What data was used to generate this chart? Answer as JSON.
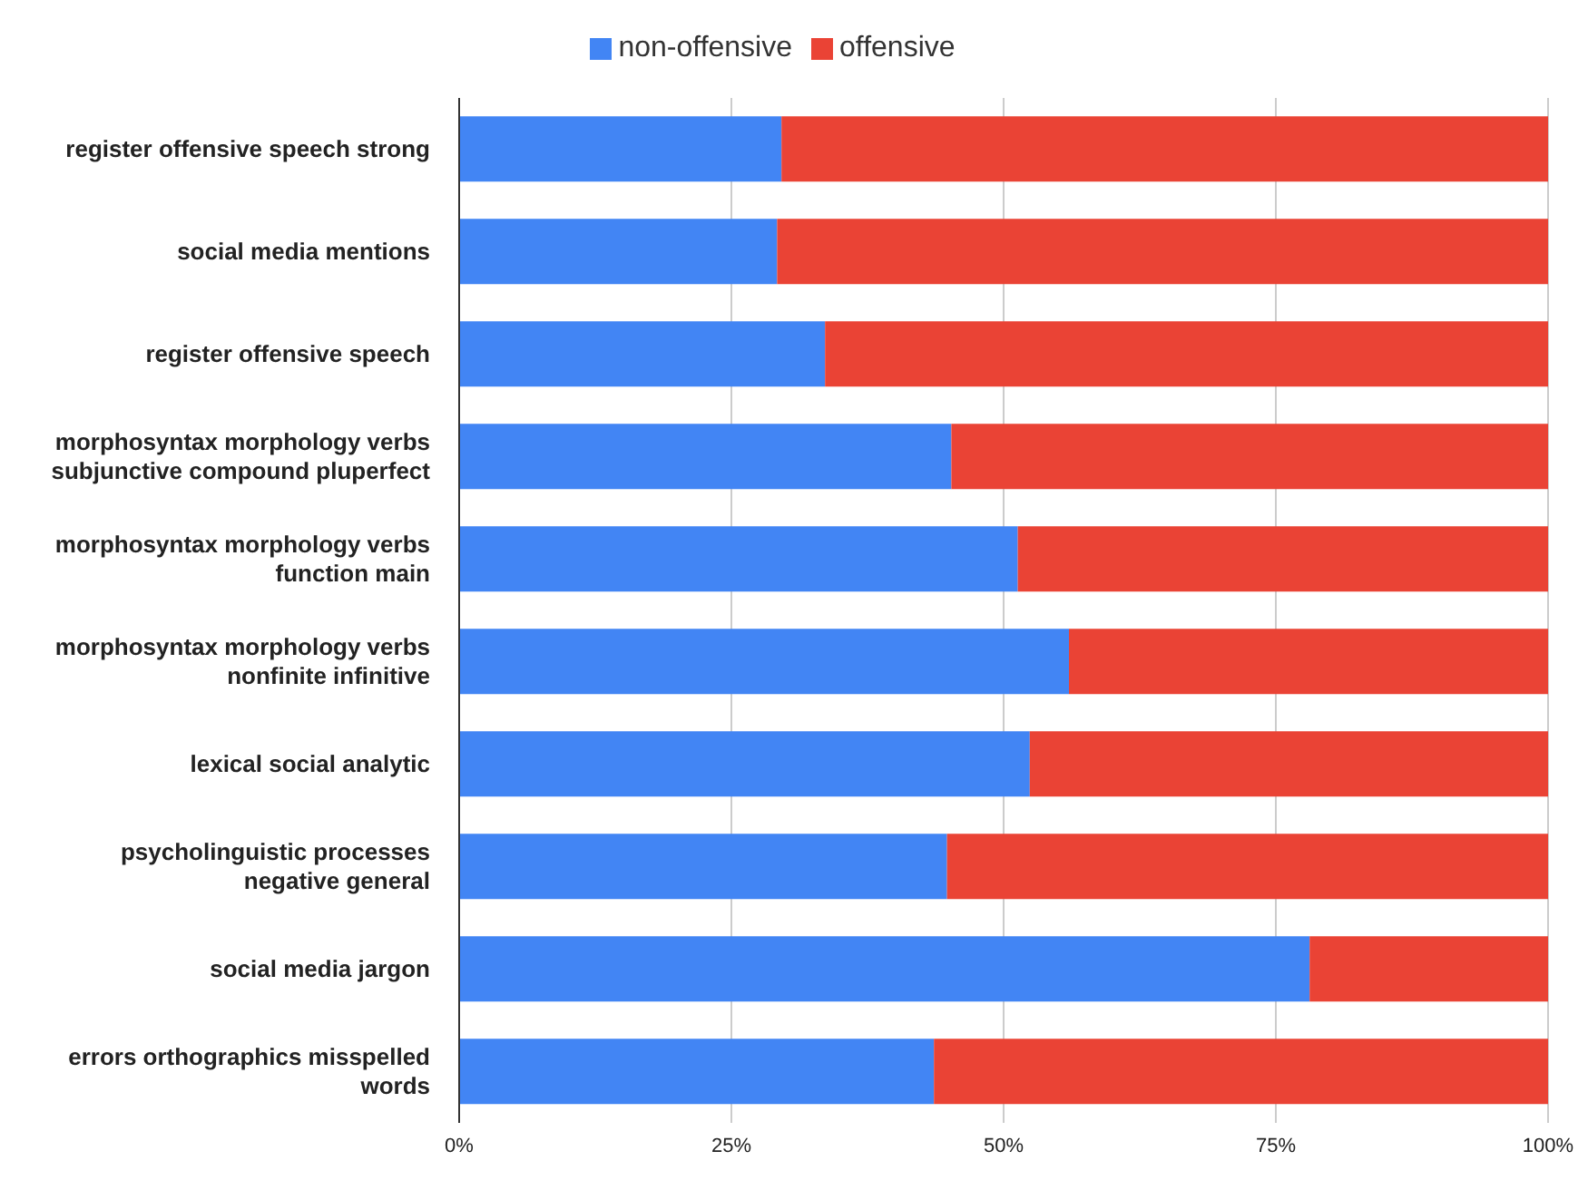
{
  "chart_data": {
    "type": "bar",
    "orientation": "horizontal",
    "stacked": true,
    "categories": [
      "register offensive speech strong",
      "social media mentions",
      "register offensive speech",
      "morphosyntax morphology verbs\nsubjunctive compound pluperfect",
      "morphosyntax morphology verbs\nfunction main",
      "morphosyntax morphology verbs\nnonfinite infinitive",
      "lexical social analytic",
      "psycholinguistic processes\nnegative general",
      "social media jargon",
      "errors orthographics misspelled\nwords"
    ],
    "series": [
      {
        "name": "non-offensive",
        "color": "#4285f4",
        "values": [
          29.6,
          29.2,
          33.6,
          45.2,
          51.3,
          56.0,
          52.4,
          44.8,
          78.1,
          43.6
        ]
      },
      {
        "name": "offensive",
        "color": "#ea4335",
        "values": [
          70.4,
          70.8,
          66.4,
          54.8,
          48.7,
          44.0,
          47.6,
          55.2,
          21.9,
          56.4
        ]
      }
    ],
    "xlim": [
      0,
      100
    ],
    "xticks": [
      {
        "value": 0,
        "label": "0%"
      },
      {
        "value": 25,
        "label": "25%"
      },
      {
        "value": 50,
        "label": "50%"
      },
      {
        "value": 75,
        "label": "75%"
      },
      {
        "value": 100,
        "label": "100%"
      }
    ],
    "grid": "x",
    "legend": "top"
  }
}
